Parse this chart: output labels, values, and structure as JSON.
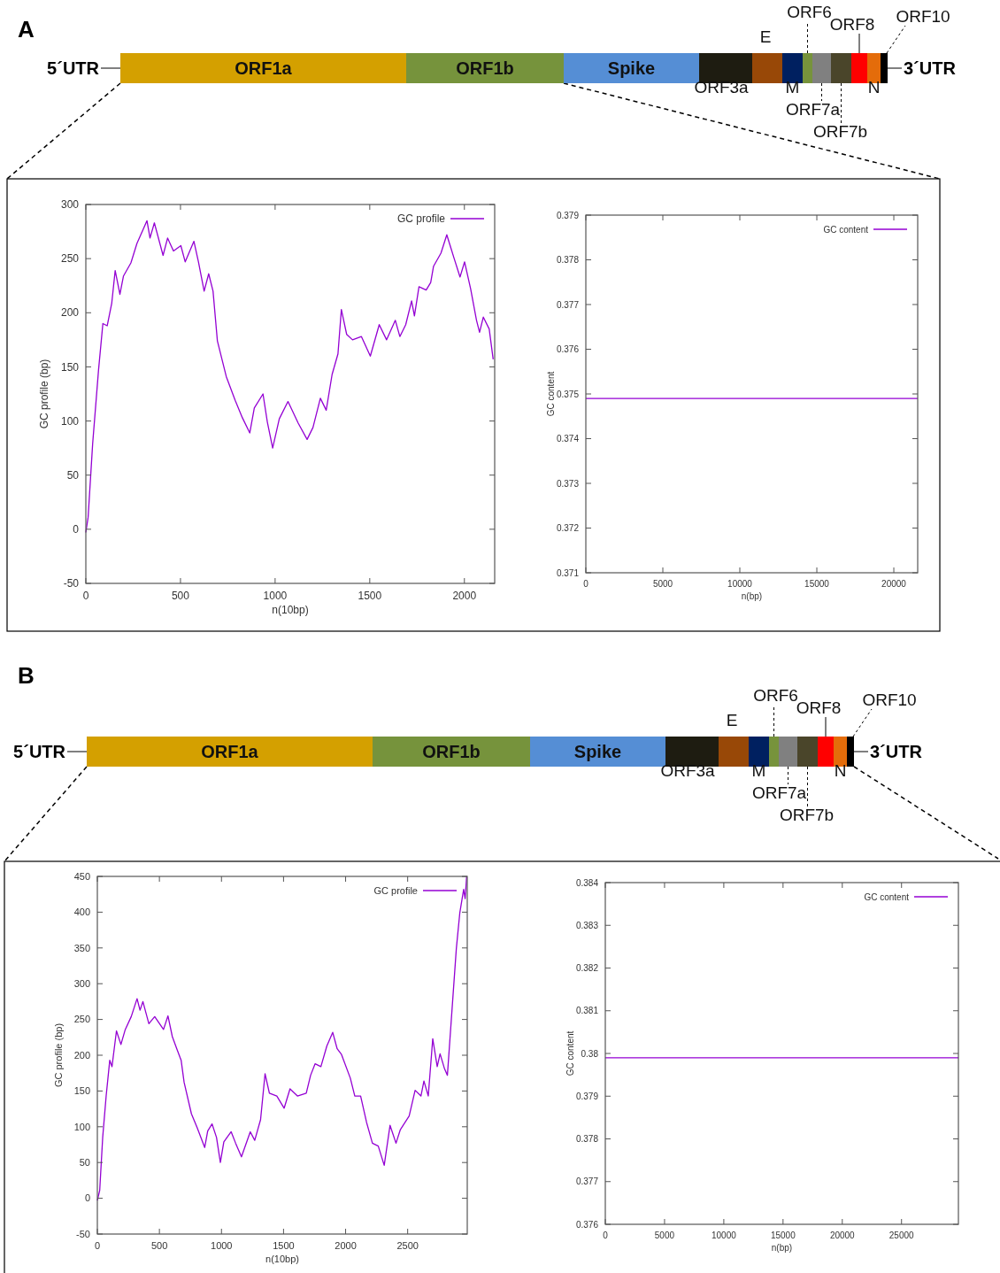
{
  "chart_data": [
    {
      "type": "other",
      "title": "A",
      "categories": [
        "ORF1a",
        "ORF1b",
        "Spike",
        "ORF3a",
        "E",
        "M",
        "ORF6",
        "ORF7a",
        "ORF7b",
        "ORF8",
        "N",
        "ORF10"
      ],
      "colors": [
        "#d4a000",
        "#76933c",
        "#558ed5",
        "#1e1c11",
        "#984807",
        "#002060",
        "#77933c",
        "#808080",
        "#4a452a",
        "#ff0000",
        "#e46c0a",
        "#000000"
      ],
      "annotations": [
        "5´UTR",
        "3´UTR"
      ]
    },
    {
      "type": "line",
      "xlabel": "n(10bp)",
      "ylabel": "GC profile (bp)",
      "xlim": [
        0,
        2160
      ],
      "ylim": [
        -50,
        300
      ],
      "xticks": [
        0,
        500,
        1000,
        1500,
        2000
      ],
      "yticks": [
        -50,
        0,
        50,
        100,
        150,
        200,
        250,
        300
      ],
      "legend": "top right",
      "x": [
        0,
        12,
        36,
        67,
        90,
        113,
        137,
        155,
        180,
        199,
        238,
        270,
        323,
        339,
        362,
        408,
        432,
        463,
        502,
        525,
        571,
        595,
        625,
        649,
        672,
        695,
        742,
        789,
        827,
        866,
        890,
        936,
        959,
        987,
        1022,
        1068,
        1122,
        1169,
        1200,
        1239,
        1270,
        1301,
        1332,
        1350,
        1378,
        1409,
        1456,
        1503,
        1550,
        1589,
        1635,
        1659,
        1690,
        1721,
        1736,
        1760,
        1798,
        1822,
        1837,
        1876,
        1907,
        1946,
        1977,
        2001,
        2033,
        2064,
        2080,
        2100,
        2131,
        2152
      ],
      "series": [
        {
          "name": "GC profile",
          "color": "#9400d3",
          "values": [
            -3,
            11,
            79,
            147,
            190,
            188,
            209,
            239,
            217,
            234,
            246,
            264,
            285,
            269,
            283,
            253,
            269,
            257,
            262,
            247,
            266,
            247,
            220,
            236,
            220,
            174,
            141,
            119,
            103,
            89,
            112,
            125,
            99,
            75,
            102,
            118,
            98,
            83,
            94,
            121,
            110,
            143,
            162,
            203,
            180,
            175,
            178,
            160,
            189,
            175,
            193,
            178,
            189,
            211,
            197,
            224,
            221,
            228,
            243,
            255,
            272,
            250,
            233,
            247,
            222,
            193,
            182,
            196,
            185,
            157
          ]
        }
      ]
    },
    {
      "type": "line",
      "xlabel": "n(bp)",
      "ylabel": "GC content",
      "xlim": [
        0,
        21550
      ],
      "ylim": [
        0.371,
        0.379
      ],
      "xticks": [
        0,
        5000,
        10000,
        15000,
        20000
      ],
      "yticks": [
        0.371,
        0.372,
        0.373,
        0.374,
        0.375,
        0.376,
        0.377,
        0.378,
        0.379
      ],
      "legend": "top right",
      "x": [
        0,
        21550
      ],
      "series": [
        {
          "name": "GC content",
          "color": "#9400d3",
          "values": [
            0.3749,
            0.3749
          ]
        }
      ]
    },
    {
      "type": "other",
      "title": "B",
      "categories": [
        "ORF1a",
        "ORF1b",
        "Spike",
        "ORF3a",
        "E",
        "M",
        "ORF6",
        "ORF7a",
        "ORF7b",
        "ORF8",
        "N",
        "ORF10"
      ],
      "colors": [
        "#d4a000",
        "#76933c",
        "#558ed5",
        "#1e1c11",
        "#984807",
        "#002060",
        "#77933c",
        "#808080",
        "#4a452a",
        "#ff0000",
        "#e46c0a",
        "#000000"
      ],
      "annotations": [
        "5´UTR",
        "3´UTR"
      ]
    },
    {
      "type": "line",
      "xlabel": "n(10bp)",
      "ylabel": "GC profile (bp)",
      "xlim": [
        0,
        2980
      ],
      "ylim": [
        -50,
        450
      ],
      "xticks": [
        0,
        500,
        1000,
        1500,
        2000,
        2500
      ],
      "yticks": [
        -50,
        0,
        50,
        100,
        150,
        200,
        250,
        300,
        350,
        400,
        450
      ],
      "legend": "top right",
      "x": [
        0,
        19,
        43,
        71,
        100,
        118,
        154,
        190,
        225,
        273,
        320,
        344,
        367,
        415,
        462,
        533,
        569,
        604,
        640,
        675,
        699,
        758,
        806,
        865,
        889,
        924,
        960,
        991,
        1019,
        1078,
        1114,
        1161,
        1232,
        1268,
        1315,
        1351,
        1386,
        1446,
        1505,
        1552,
        1612,
        1683,
        1718,
        1754,
        1801,
        1849,
        1896,
        1932,
        1967,
        2038,
        2074,
        2121,
        2169,
        2216,
        2263,
        2311,
        2358,
        2406,
        2441,
        2512,
        2560,
        2607,
        2631,
        2666,
        2702,
        2738,
        2761,
        2797,
        2820,
        2892,
        2920,
        2951,
        2963,
        2975
      ],
      "series": [
        {
          "name": "GC profile",
          "color": "#9400d3",
          "values": [
            -3,
            11,
            85,
            143,
            193,
            184,
            234,
            215,
            236,
            254,
            279,
            263,
            275,
            244,
            254,
            236,
            255,
            226,
            209,
            193,
            162,
            118,
            98,
            71,
            94,
            104,
            85,
            50,
            79,
            93,
            77,
            58,
            93,
            81,
            110,
            174,
            147,
            143,
            126,
            153,
            143,
            147,
            172,
            188,
            184,
            213,
            232,
            209,
            201,
            168,
            143,
            143,
            106,
            77,
            73,
            46,
            102,
            77,
            96,
            115,
            151,
            143,
            164,
            143,
            223,
            184,
            202,
            181,
            172,
            349,
            399,
            432,
            419,
            450
          ]
        }
      ]
    },
    {
      "type": "line",
      "xlabel": "n(bp)",
      "ylabel": "GC content",
      "xlim": [
        0,
        29800
      ],
      "ylim": [
        0.376,
        0.384
      ],
      "xticks": [
        0,
        5000,
        10000,
        15000,
        20000,
        25000
      ],
      "yticks": [
        0.376,
        0.377,
        0.378,
        0.379,
        0.38,
        0.381,
        0.382,
        0.383,
        0.384
      ],
      "legend": "top right",
      "x": [
        0,
        29800
      ],
      "series": [
        {
          "name": "GC content",
          "color": "#9400d3",
          "values": [
            0.3799,
            0.3799
          ]
        }
      ]
    }
  ]
}
